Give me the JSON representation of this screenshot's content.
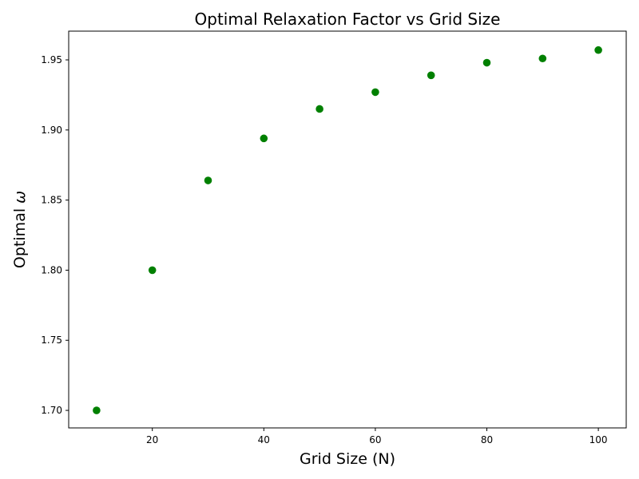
{
  "chart_data": {
    "type": "scatter",
    "title": "Optimal Relaxation Factor vs Grid Size",
    "xlabel": "Grid Size (N)",
    "ylabel_prefix": "Optimal ",
    "ylabel_symbol": "ω",
    "xlim": [
      5,
      105
    ],
    "ylim": [
      1.6875,
      1.9705
    ],
    "grid": false,
    "x_ticks": [
      20,
      40,
      60,
      80,
      100
    ],
    "x_tick_labels": [
      "20",
      "40",
      "60",
      "80",
      "100"
    ],
    "y_ticks": [
      1.7,
      1.75,
      1.8,
      1.85,
      1.9,
      1.95
    ],
    "y_tick_labels": [
      "1.70",
      "1.75",
      "1.80",
      "1.85",
      "1.90",
      "1.95"
    ],
    "marker_color": "#008000",
    "x": [
      10,
      20,
      30,
      40,
      50,
      60,
      70,
      80,
      90,
      100
    ],
    "y": [
      1.7,
      1.8,
      1.864,
      1.894,
      1.915,
      1.927,
      1.939,
      1.948,
      1.951,
      1.957
    ]
  }
}
